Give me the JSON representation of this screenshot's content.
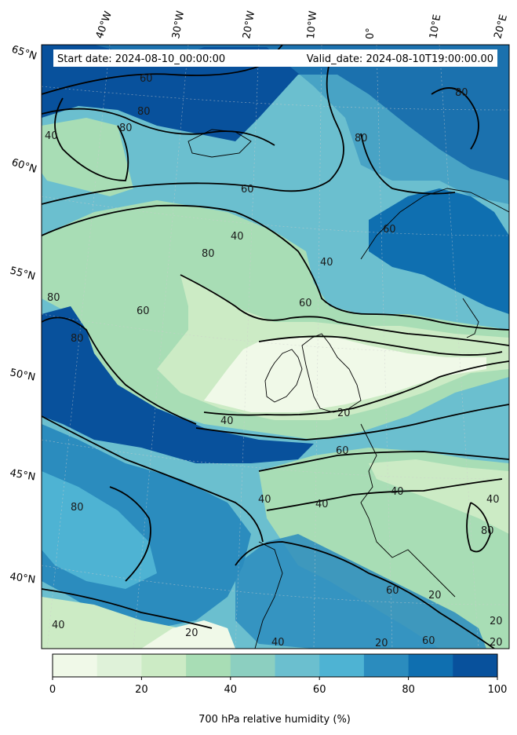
{
  "map": {
    "info_box": {
      "start_date": "Start date: 2024-08-10_00:00:00",
      "valid_date": "Valid_date: 2024-08-10T19:00:00.00"
    },
    "longitude_labels": [
      "40°W",
      "30°W",
      "20°W",
      "10°W",
      "0°",
      "10°E",
      "20°E"
    ],
    "latitude_labels": [
      "65°N",
      "60°N",
      "55°N",
      "50°N",
      "45°N",
      "40°N"
    ],
    "contour_labels": [
      "60",
      "80",
      "80",
      "40",
      "60",
      "80",
      "60",
      "40",
      "80",
      "40",
      "60",
      "80",
      "60",
      "80",
      "80",
      "40",
      "20",
      "40",
      "60",
      "40",
      "40",
      "40",
      "80",
      "60",
      "80",
      "40",
      "20",
      "40",
      "20",
      "60",
      "20",
      "20",
      "20"
    ],
    "colors": {
      "ocean_deep": "#08519c",
      "ocean_moist": "#2171b5",
      "moist": "#4292c6",
      "mid": "#6bbfcf",
      "green": "#a8ddb5",
      "dry": "#cceccb",
      "very_dry": "#f0f9e8"
    }
  },
  "colorbar": {
    "ticks": [
      "0",
      "20",
      "40",
      "60",
      "80",
      "100"
    ],
    "label": "700 hPa relative humidity (%)",
    "colors": [
      "#f0f9e8",
      "#dff2d9",
      "#ccebc5",
      "#a8ddb5",
      "#8ccfc0",
      "#6bbfcf",
      "#4eb3d3",
      "#2b8cbe",
      "#0f6fb0",
      "#08519c"
    ]
  }
}
